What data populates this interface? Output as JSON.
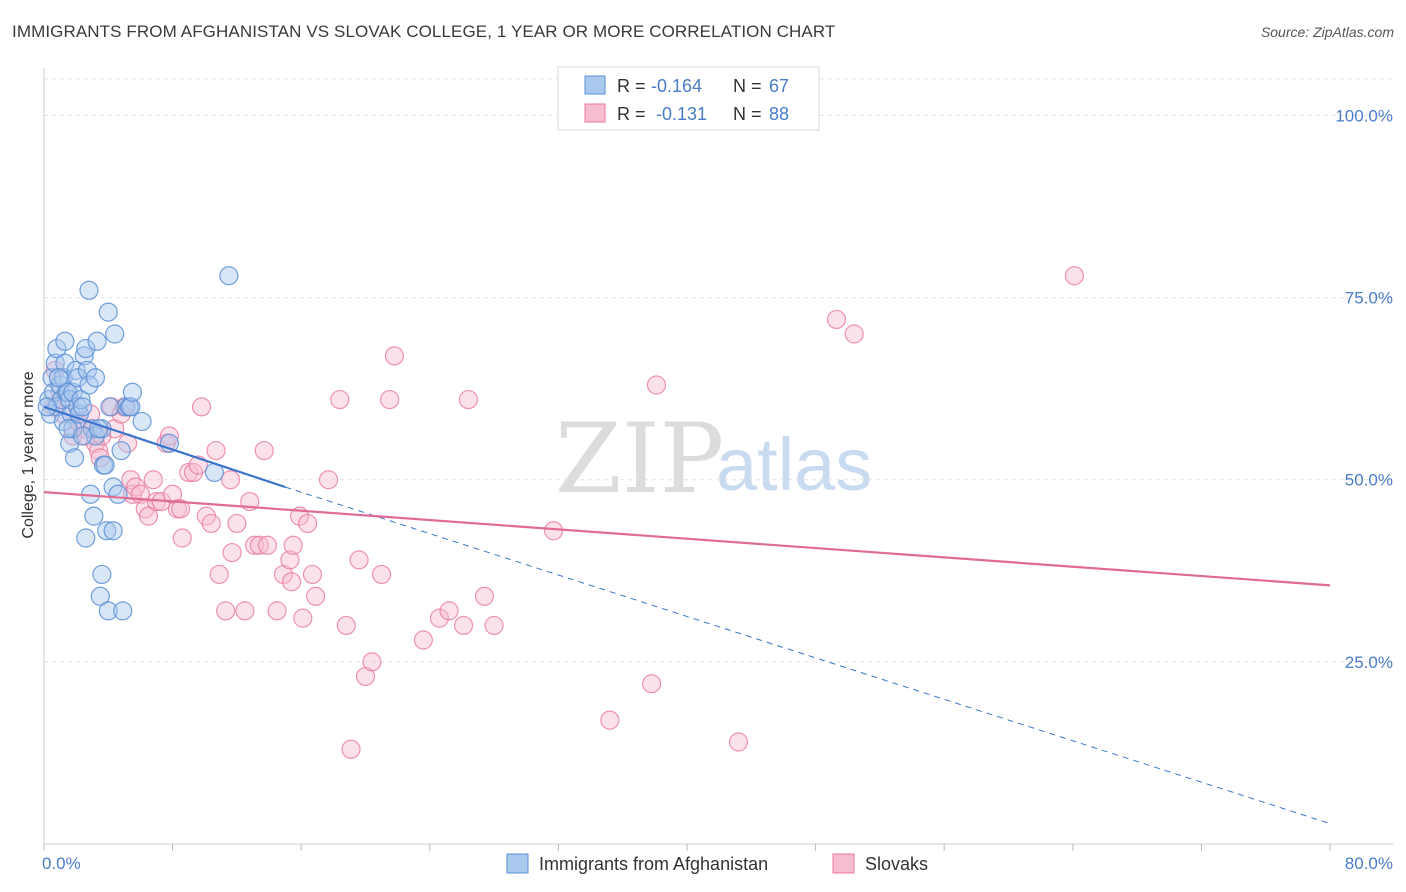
{
  "header": {
    "title": "IMMIGRANTS FROM AFGHANISTAN VS SLOVAK COLLEGE, 1 YEAR OR MORE CORRELATION CHART",
    "source": "Source: ZipAtlas.com"
  },
  "watermark": {
    "zip": "ZIP",
    "atlas": "atlas"
  },
  "legend_box": {
    "rows": [
      {
        "r_label": "R = ",
        "r_value": "-0.164",
        "n_label": "N = ",
        "n_value": "67"
      },
      {
        "r_label": "R = ",
        "r_value": " -0.131",
        "n_label": "N = ",
        "n_value": "88"
      }
    ]
  },
  "bottom_legend": {
    "items": [
      {
        "label": "Immigrants from Afghanistan"
      },
      {
        "label": "Slovaks"
      }
    ]
  },
  "colors": {
    "blue_fill": "#a9c8ee",
    "blue_stroke": "#5b8fd6",
    "blue_line": "#3a74cc",
    "pink_fill": "#f6bcd0",
    "pink_stroke": "#e8799e",
    "pink_line": "#e06b95",
    "tick": "#4a7cc9",
    "grid": "#e2e2e2"
  },
  "chart_data": {
    "type": "scatter",
    "title": "IMMIGRANTS FROM AFGHANISTAN VS SLOVAK COLLEGE, 1 YEAR OR MORE CORRELATION CHART",
    "ylabel": "College, 1 year or more",
    "xlabel": "",
    "xlim": [
      0,
      80
    ],
    "ylim": [
      0,
      105
    ],
    "x_tick_labels": [
      "0.0%",
      "80.0%"
    ],
    "y_ticks": [
      25,
      50,
      75,
      100
    ],
    "y_tick_labels": [
      "25.0%",
      "50.0%",
      "75.0%",
      "100.0%"
    ],
    "grid": true,
    "legend_position": "top-center",
    "series": [
      {
        "name": "Immigrants from Afghanistan",
        "r": -0.164,
        "n": 67,
        "trend": {
          "x0": 0,
          "y0": 60,
          "x1": 15,
          "y1": 49,
          "dashed_to_x": 80,
          "dashed_to_y": 2.8
        },
        "points": [
          [
            0.3,
            61
          ],
          [
            0.4,
            59
          ],
          [
            0.5,
            64
          ],
          [
            0.6,
            62
          ],
          [
            0.7,
            66
          ],
          [
            0.8,
            68
          ],
          [
            0.8,
            60
          ],
          [
            1.0,
            63
          ],
          [
            1.1,
            61
          ],
          [
            1.2,
            64
          ],
          [
            1.2,
            58
          ],
          [
            1.3,
            66
          ],
          [
            1.3,
            69
          ],
          [
            1.4,
            62
          ],
          [
            1.5,
            62
          ],
          [
            1.6,
            61
          ],
          [
            1.6,
            55
          ],
          [
            1.7,
            59
          ],
          [
            1.8,
            57
          ],
          [
            1.8,
            62
          ],
          [
            1.9,
            53
          ],
          [
            2.0,
            65
          ],
          [
            2.1,
            64
          ],
          [
            2.1,
            60
          ],
          [
            2.2,
            59
          ],
          [
            2.3,
            61
          ],
          [
            2.4,
            60
          ],
          [
            2.5,
            67
          ],
          [
            2.6,
            68
          ],
          [
            2.6,
            42
          ],
          [
            2.7,
            65
          ],
          [
            2.8,
            63
          ],
          [
            2.8,
            76
          ],
          [
            2.9,
            48
          ],
          [
            3.0,
            57
          ],
          [
            3.1,
            45
          ],
          [
            3.2,
            64
          ],
          [
            3.2,
            56
          ],
          [
            3.3,
            69
          ],
          [
            3.5,
            34
          ],
          [
            3.6,
            57
          ],
          [
            3.6,
            37
          ],
          [
            3.7,
            52
          ],
          [
            3.9,
            43
          ],
          [
            4.0,
            73
          ],
          [
            4.0,
            32
          ],
          [
            4.3,
            49
          ],
          [
            4.3,
            43
          ],
          [
            4.4,
            70
          ],
          [
            4.6,
            48
          ],
          [
            4.8,
            54
          ],
          [
            4.9,
            32
          ],
          [
            5.1,
            60
          ],
          [
            5.3,
            60
          ],
          [
            5.4,
            60
          ],
          [
            5.5,
            62
          ],
          [
            6.1,
            58
          ],
          [
            7.8,
            55
          ],
          [
            10.6,
            51
          ],
          [
            11.5,
            78
          ],
          [
            0.2,
            60
          ],
          [
            0.9,
            64
          ],
          [
            1.5,
            57
          ],
          [
            2.4,
            56
          ],
          [
            3.4,
            57
          ],
          [
            3.8,
            52
          ],
          [
            4.1,
            60
          ]
        ]
      },
      {
        "name": "Slovaks",
        "r": -0.131,
        "n": 88,
        "trend": {
          "x0": 0,
          "y0": 48.3,
          "x1": 80,
          "y1": 35.5
        },
        "points": [
          [
            0.6,
            60
          ],
          [
            0.7,
            65
          ],
          [
            1.0,
            62
          ],
          [
            1.2,
            59
          ],
          [
            1.5,
            61
          ],
          [
            1.8,
            56
          ],
          [
            2.1,
            58
          ],
          [
            2.4,
            57
          ],
          [
            2.6,
            56
          ],
          [
            2.9,
            59
          ],
          [
            3.0,
            57
          ],
          [
            3.2,
            55
          ],
          [
            3.4,
            54
          ],
          [
            3.5,
            53
          ],
          [
            3.6,
            56
          ],
          [
            4.2,
            60
          ],
          [
            4.4,
            57
          ],
          [
            4.8,
            59
          ],
          [
            5.0,
            60
          ],
          [
            5.2,
            55
          ],
          [
            5.4,
            50
          ],
          [
            5.5,
            48
          ],
          [
            5.7,
            49
          ],
          [
            6.0,
            48
          ],
          [
            6.3,
            46
          ],
          [
            6.5,
            45
          ],
          [
            6.8,
            50
          ],
          [
            7.0,
            47
          ],
          [
            7.3,
            47
          ],
          [
            7.6,
            55
          ],
          [
            7.8,
            56
          ],
          [
            8.0,
            48
          ],
          [
            8.3,
            46
          ],
          [
            8.5,
            46
          ],
          [
            8.6,
            42
          ],
          [
            9.0,
            51
          ],
          [
            9.3,
            51
          ],
          [
            9.6,
            52
          ],
          [
            9.8,
            60
          ],
          [
            10.1,
            45
          ],
          [
            10.4,
            44
          ],
          [
            10.7,
            54
          ],
          [
            10.9,
            37
          ],
          [
            11.3,
            32
          ],
          [
            11.6,
            50
          ],
          [
            11.7,
            40
          ],
          [
            12.0,
            44
          ],
          [
            12.5,
            32
          ],
          [
            12.8,
            47
          ],
          [
            13.1,
            41
          ],
          [
            13.4,
            41
          ],
          [
            13.7,
            54
          ],
          [
            13.9,
            41
          ],
          [
            14.5,
            32
          ],
          [
            14.9,
            37
          ],
          [
            15.3,
            39
          ],
          [
            15.4,
            36
          ],
          [
            15.5,
            41
          ],
          [
            15.9,
            45
          ],
          [
            16.1,
            31
          ],
          [
            16.4,
            44
          ],
          [
            16.7,
            37
          ],
          [
            16.9,
            34
          ],
          [
            17.7,
            50
          ],
          [
            18.4,
            61
          ],
          [
            18.8,
            30
          ],
          [
            19.1,
            13
          ],
          [
            19.6,
            39
          ],
          [
            20.0,
            23
          ],
          [
            20.4,
            25
          ],
          [
            21.0,
            37
          ],
          [
            21.5,
            61
          ],
          [
            21.8,
            67
          ],
          [
            23.6,
            28
          ],
          [
            24.6,
            31
          ],
          [
            25.2,
            32
          ],
          [
            26.1,
            30
          ],
          [
            26.4,
            61
          ],
          [
            27.4,
            34
          ],
          [
            28.0,
            30
          ],
          [
            31.7,
            43
          ],
          [
            35.2,
            17
          ],
          [
            37.8,
            22
          ],
          [
            38.1,
            63
          ],
          [
            43.2,
            14
          ],
          [
            49.3,
            72
          ],
          [
            50.4,
            70
          ],
          [
            64.1,
            78
          ]
        ]
      }
    ]
  }
}
